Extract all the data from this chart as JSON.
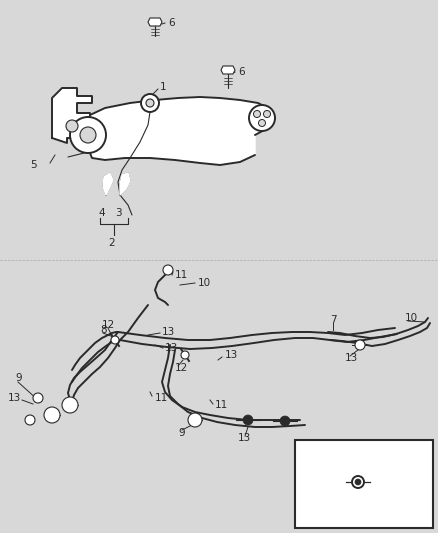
{
  "bg_color": "#d8d8d8",
  "line_color": "#2a2a2a",
  "fig_width": 4.38,
  "fig_height": 5.33,
  "dpi": 100
}
